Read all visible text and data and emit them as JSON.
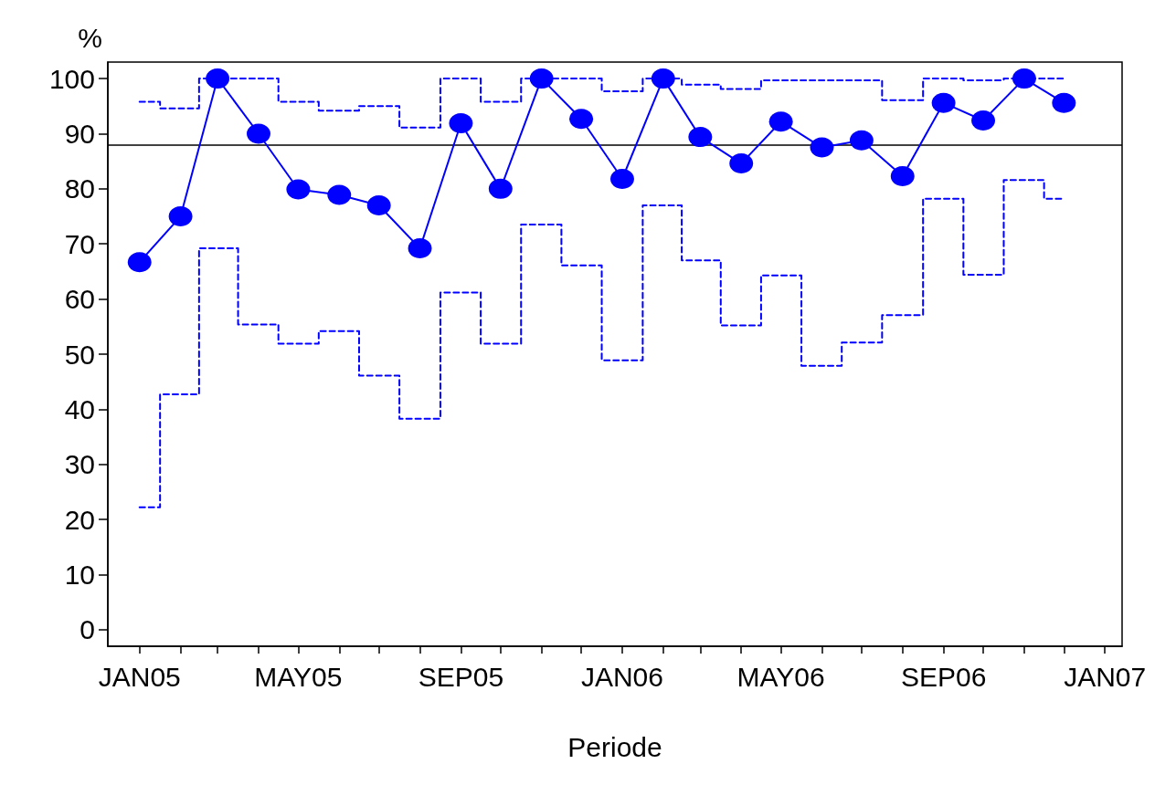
{
  "chart_data": {
    "type": "line",
    "xlabel": "Periode",
    "ylabel": "%",
    "x": [
      "2005-01",
      "2005-02",
      "2005-03",
      "2005-04",
      "2005-05",
      "2005-06",
      "2005-07",
      "2005-08",
      "2005-09",
      "2005-10",
      "2005-11",
      "2005-12",
      "2006-01",
      "2006-02",
      "2006-03",
      "2006-04",
      "2006-05",
      "2006-06",
      "2006-07",
      "2006-08",
      "2006-09",
      "2006-10",
      "2006-11",
      "2006-12"
    ],
    "series": [
      {
        "color": "#0000ff",
        "marker": "circle",
        "line_style": "solid",
        "values": [
          66.7,
          75.0,
          100,
          90,
          79.9,
          78.9,
          77,
          69.2,
          91.9,
          80,
          100,
          92.7,
          81.8,
          100,
          89.4,
          84.6,
          92.2,
          87.5,
          88.8,
          82.3,
          95.6,
          92.4,
          100,
          95.6
        ]
      },
      {
        "type": "step",
        "color": "#0000ff",
        "marker": "none",
        "line_style": "dashed",
        "values": [
          95.8,
          94.6,
          100,
          100,
          95.8,
          94.2,
          95.0,
          91.1,
          100,
          95.8,
          100,
          100,
          97.7,
          100,
          98.9,
          98.1,
          99.7,
          99.7,
          99.7,
          96.1,
          100,
          99.7,
          100,
          100
        ]
      },
      {
        "type": "step",
        "color": "#0000ff",
        "marker": "none",
        "line_style": "dashed",
        "values": [
          22.2,
          42.7,
          69.2,
          55.4,
          51.9,
          54.2,
          46.1,
          38.3,
          61.2,
          51.9,
          73.5,
          66.1,
          48.9,
          77,
          67,
          55.2,
          64.3,
          47.9,
          52.1,
          57.1,
          78.2,
          64.4,
          81.6,
          78.2
        ]
      }
    ],
    "xlim": [
      "2004-12-08",
      "2007-01-14"
    ],
    "xticks": [
      {
        "value": "2005-01",
        "label": "JAN05"
      },
      {
        "value": "2005-02",
        "label": null
      },
      {
        "value": "2005-03",
        "label": null
      },
      {
        "value": "2005-04",
        "label": null
      },
      {
        "value": "2005-05",
        "label": "MAY05"
      },
      {
        "value": "2005-06",
        "label": null
      },
      {
        "value": "2005-07",
        "label": null
      },
      {
        "value": "2005-08",
        "label": null
      },
      {
        "value": "2005-09",
        "label": "SEP05"
      },
      {
        "value": "2005-10",
        "label": null
      },
      {
        "value": "2005-11",
        "label": null
      },
      {
        "value": "2005-12",
        "label": null
      },
      {
        "value": "2006-01",
        "label": "JAN06"
      },
      {
        "value": "2006-02",
        "label": null
      },
      {
        "value": "2006-03",
        "label": null
      },
      {
        "value": "2006-04",
        "label": null
      },
      {
        "value": "2006-05",
        "label": "MAY06"
      },
      {
        "value": "2006-06",
        "label": null
      },
      {
        "value": "2006-07",
        "label": null
      },
      {
        "value": "2006-08",
        "label": null
      },
      {
        "value": "2006-09",
        "label": "SEP06"
      },
      {
        "value": "2006-10",
        "label": null
      },
      {
        "value": "2006-11",
        "label": null
      },
      {
        "value": "2006-12",
        "label": null
      },
      {
        "value": "2007-01",
        "label": "JAN07"
      }
    ],
    "ylim": [
      -3,
      103
    ],
    "yticks": [
      0,
      10,
      20,
      30,
      40,
      50,
      60,
      70,
      80,
      90,
      100
    ],
    "ref_lines": [
      {
        "axis": "y",
        "value": 88,
        "color": "#000000",
        "line_style": "solid"
      }
    ],
    "grid": false
  }
}
